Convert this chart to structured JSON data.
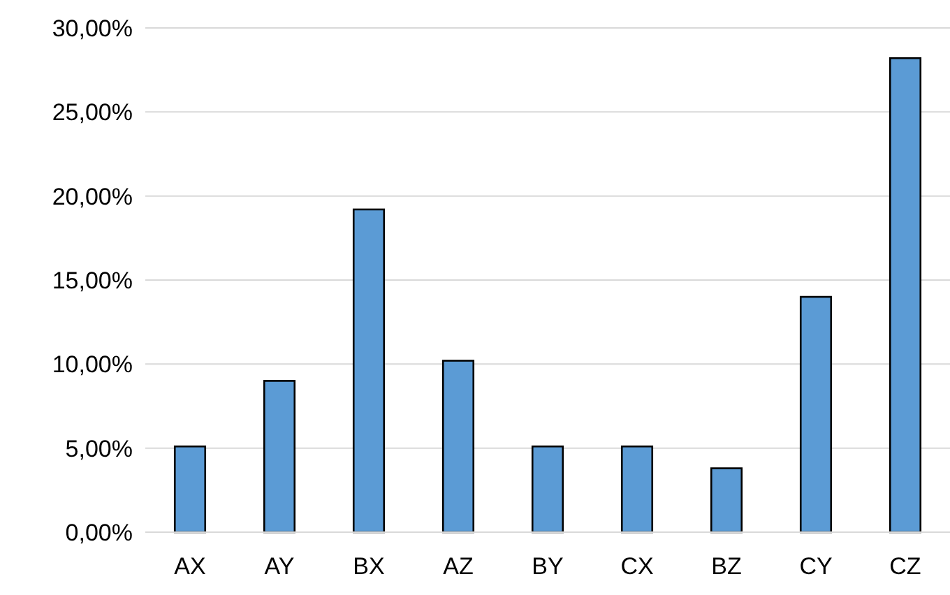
{
  "chart_data": {
    "type": "bar",
    "categories": [
      "AX",
      "AY",
      "BX",
      "AZ",
      "BY",
      "CX",
      "BZ",
      "CY",
      "CZ"
    ],
    "values": [
      5.1,
      9.0,
      19.2,
      10.2,
      5.1,
      5.1,
      3.8,
      14.0,
      28.2
    ],
    "color": "#5b9bd5",
    "ylim": [
      0,
      30
    ],
    "yticks": [
      {
        "value": 0,
        "label": "0,00%"
      },
      {
        "value": 5,
        "label": "5,00%"
      },
      {
        "value": 10,
        "label": "10,00%"
      },
      {
        "value": 15,
        "label": "15,00%"
      },
      {
        "value": 20,
        "label": "20,00%"
      },
      {
        "value": 25,
        "label": "25,00%"
      },
      {
        "value": 30,
        "label": "30,00%"
      }
    ],
    "grid": "y"
  }
}
